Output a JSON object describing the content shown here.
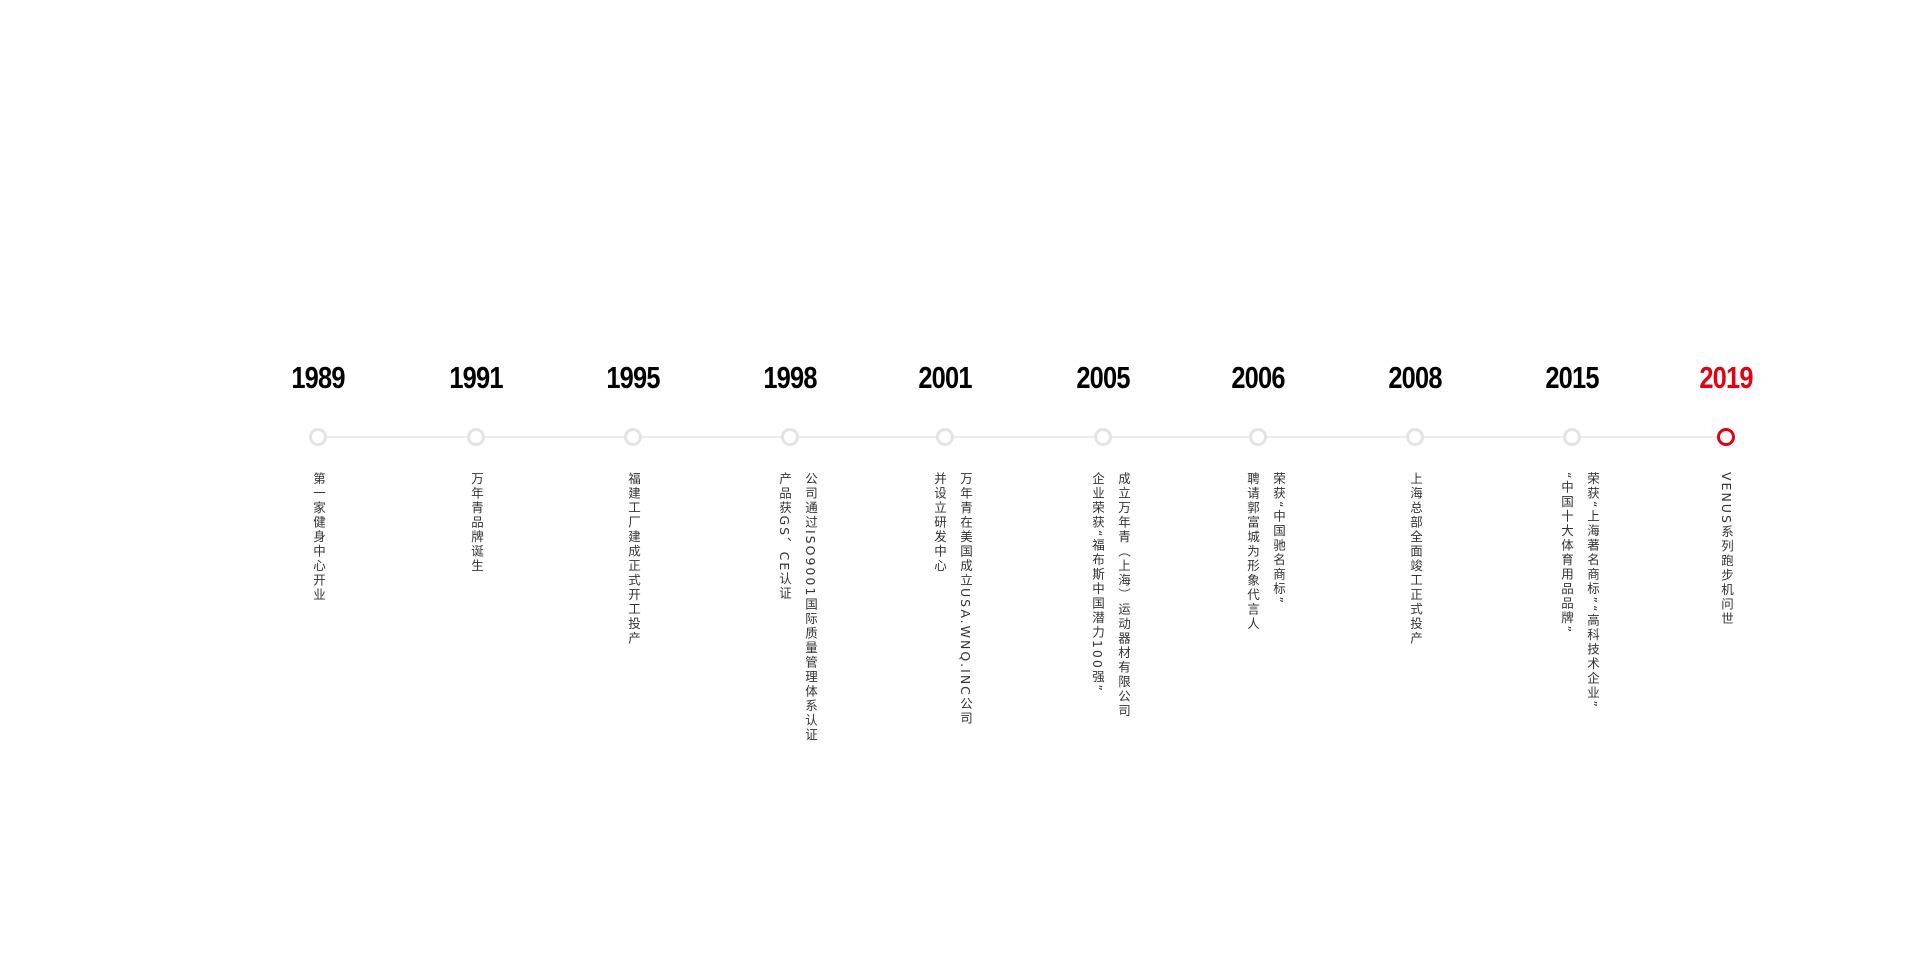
{
  "accent_color": "#e60012",
  "events": [
    {
      "year": "1989",
      "lines": [
        "第一家健身中心开业"
      ]
    },
    {
      "year": "1991",
      "lines": [
        "万年青品牌诞生"
      ]
    },
    {
      "year": "1995",
      "lines": [
        "福建工厂建成正式开工投产"
      ]
    },
    {
      "year": "1998",
      "lines": [
        "公司通过ISO9001国际质量管理体系认证",
        "产品获GS、CE认证"
      ]
    },
    {
      "year": "2001",
      "lines": [
        "万年青在美国成立USA.WNQ.INC公司",
        "并设立研发中心"
      ]
    },
    {
      "year": "2005",
      "lines": [
        "成立万年青（上海）运动器材有限公司",
        "企业荣获“福布斯中国潜力100强”"
      ]
    },
    {
      "year": "2006",
      "lines": [
        "荣获“中国驰名商标”",
        "聘请郭富城为形象代言人"
      ]
    },
    {
      "year": "2008",
      "lines": [
        "上海总部全面竣工正式投产"
      ]
    },
    {
      "year": "2015",
      "lines": [
        "荣获“上海著名商标”“高科技术企业”",
        "“中国十大体育用品品牌”"
      ]
    },
    {
      "year": "2019",
      "lines": [
        "VENUS系列跑步机问世"
      ],
      "active": true
    }
  ]
}
